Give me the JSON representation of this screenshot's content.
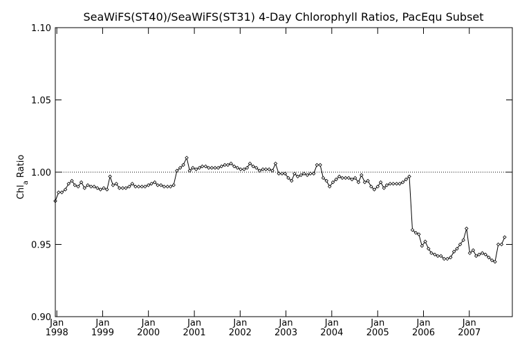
{
  "chart_data": {
    "type": "line",
    "title": "SeaWiFS(ST40)/SeaWiFS(ST31) 4-Day Chlorophyll Ratios, PacEqu Subset",
    "ylabel": "Chl_a Ratio",
    "ylabel_main": "Chl",
    "ylabel_sub": "a",
    "ylabel_rest": " Ratio",
    "xlabel": "",
    "ylim": [
      0.9,
      1.1
    ],
    "xlim": [
      "1997-12-20",
      "2007-12-10"
    ],
    "yticks": [
      "0.90",
      "0.95",
      "1.00",
      "1.05",
      "1.10"
    ],
    "xticks": [
      {
        "month": "Jan",
        "year": "1998",
        "date": "1998-01-01"
      },
      {
        "month": "Jan",
        "year": "1999",
        "date": "1999-01-01"
      },
      {
        "month": "Jan",
        "year": "2000",
        "date": "2000-01-01"
      },
      {
        "month": "Jan",
        "year": "2001",
        "date": "2001-01-01"
      },
      {
        "month": "Jan",
        "year": "2002",
        "date": "2002-01-01"
      },
      {
        "month": "Jan",
        "year": "2003",
        "date": "2003-01-01"
      },
      {
        "month": "Jan",
        "year": "2004",
        "date": "2004-01-01"
      },
      {
        "month": "Jan",
        "year": "2005",
        "date": "2005-01-01"
      },
      {
        "month": "Jan",
        "year": "2006",
        "date": "2006-01-01"
      },
      {
        "month": "Jan",
        "year": "2007",
        "date": "2007-01-01"
      }
    ],
    "reference_line": {
      "y": 1.0,
      "style": "dotted"
    },
    "series": [
      {
        "marker": "diamond",
        "points": [
          [
            "1997-12-20",
            0.98
          ],
          [
            "1998-01-15",
            0.986
          ],
          [
            "1998-02-10",
            0.986
          ],
          [
            "1998-03-10",
            0.988
          ],
          [
            "1998-04-05",
            0.992
          ],
          [
            "1998-05-01",
            0.994
          ],
          [
            "1998-05-25",
            0.991
          ],
          [
            "1998-06-20",
            0.99
          ],
          [
            "1998-07-15",
            0.993
          ],
          [
            "1998-08-10",
            0.989
          ],
          [
            "1998-09-05",
            0.991
          ],
          [
            "1998-10-01",
            0.99
          ],
          [
            "1998-10-25",
            0.99
          ],
          [
            "1998-11-20",
            0.989
          ],
          [
            "1998-12-15",
            0.988
          ],
          [
            "1999-01-10",
            0.989
          ],
          [
            "1999-02-05",
            0.988
          ],
          [
            "1999-03-01",
            0.997
          ],
          [
            "1999-03-25",
            0.991
          ],
          [
            "1999-04-20",
            0.992
          ],
          [
            "1999-05-15",
            0.989
          ],
          [
            "1999-06-10",
            0.989
          ],
          [
            "1999-07-05",
            0.989
          ],
          [
            "1999-08-01",
            0.99
          ],
          [
            "1999-08-25",
            0.992
          ],
          [
            "1999-09-20",
            0.99
          ],
          [
            "1999-10-15",
            0.99
          ],
          [
            "1999-11-10",
            0.99
          ],
          [
            "1999-12-05",
            0.99
          ],
          [
            "2000-01-01",
            0.991
          ],
          [
            "2000-01-25",
            0.992
          ],
          [
            "2000-02-20",
            0.993
          ],
          [
            "2000-03-15",
            0.991
          ],
          [
            "2000-04-10",
            0.991
          ],
          [
            "2000-05-05",
            0.99
          ],
          [
            "2000-06-01",
            0.99
          ],
          [
            "2000-06-25",
            0.99
          ],
          [
            "2000-07-20",
            0.991
          ],
          [
            "2000-08-15",
            1.001
          ],
          [
            "2000-09-10",
            1.003
          ],
          [
            "2000-10-05",
            1.005
          ],
          [
            "2000-11-01",
            1.01
          ],
          [
            "2000-11-25",
            1.001
          ],
          [
            "2000-12-20",
            1.003
          ],
          [
            "2001-01-15",
            1.002
          ],
          [
            "2001-02-10",
            1.003
          ],
          [
            "2001-03-05",
            1.004
          ],
          [
            "2001-04-01",
            1.004
          ],
          [
            "2001-04-25",
            1.003
          ],
          [
            "2001-05-20",
            1.003
          ],
          [
            "2001-06-15",
            1.003
          ],
          [
            "2001-07-10",
            1.003
          ],
          [
            "2001-08-05",
            1.004
          ],
          [
            "2001-09-01",
            1.005
          ],
          [
            "2001-09-25",
            1.005
          ],
          [
            "2001-10-20",
            1.006
          ],
          [
            "2001-11-15",
            1.004
          ],
          [
            "2001-12-10",
            1.003
          ],
          [
            "2002-01-05",
            1.002
          ],
          [
            "2002-02-01",
            1.002
          ],
          [
            "2002-02-25",
            1.003
          ],
          [
            "2002-03-20",
            1.006
          ],
          [
            "2002-04-15",
            1.004
          ],
          [
            "2002-05-10",
            1.003
          ],
          [
            "2002-06-05",
            1.001
          ],
          [
            "2002-07-01",
            1.002
          ],
          [
            "2002-07-25",
            1.002
          ],
          [
            "2002-08-20",
            1.002
          ],
          [
            "2002-09-15",
            1.001
          ],
          [
            "2002-10-10",
            1.006
          ],
          [
            "2002-11-05",
            0.999
          ],
          [
            "2002-12-01",
            0.999
          ],
          [
            "2002-12-25",
            0.999
          ],
          [
            "2003-01-20",
            0.996
          ],
          [
            "2003-02-15",
            0.994
          ],
          [
            "2003-03-10",
            0.999
          ],
          [
            "2003-04-05",
            0.997
          ],
          [
            "2003-05-01",
            0.998
          ],
          [
            "2003-05-25",
            0.999
          ],
          [
            "2003-06-20",
            0.998
          ],
          [
            "2003-07-15",
            0.999
          ],
          [
            "2003-08-10",
            0.999
          ],
          [
            "2003-09-05",
            1.005
          ],
          [
            "2003-10-01",
            1.005
          ],
          [
            "2003-10-25",
            0.996
          ],
          [
            "2003-11-20",
            0.994
          ],
          [
            "2003-12-15",
            0.99
          ],
          [
            "2004-01-10",
            0.993
          ],
          [
            "2004-02-05",
            0.995
          ],
          [
            "2004-03-01",
            0.997
          ],
          [
            "2004-03-25",
            0.996
          ],
          [
            "2004-04-20",
            0.996
          ],
          [
            "2004-05-15",
            0.996
          ],
          [
            "2004-06-10",
            0.995
          ],
          [
            "2004-07-05",
            0.996
          ],
          [
            "2004-08-01",
            0.993
          ],
          [
            "2004-08-25",
            0.998
          ],
          [
            "2004-09-20",
            0.993
          ],
          [
            "2004-10-15",
            0.994
          ],
          [
            "2004-11-10",
            0.99
          ],
          [
            "2004-12-05",
            0.988
          ],
          [
            "2005-01-01",
            0.99
          ],
          [
            "2005-01-25",
            0.993
          ],
          [
            "2005-02-20",
            0.989
          ],
          [
            "2005-03-15",
            0.991
          ],
          [
            "2005-04-10",
            0.992
          ],
          [
            "2005-05-05",
            0.992
          ],
          [
            "2005-06-01",
            0.992
          ],
          [
            "2005-06-25",
            0.992
          ],
          [
            "2005-07-20",
            0.993
          ],
          [
            "2005-08-15",
            0.995
          ],
          [
            "2005-09-10",
            0.997
          ],
          [
            "2005-10-05",
            0.96
          ],
          [
            "2005-11-01",
            0.958
          ],
          [
            "2005-11-25",
            0.957
          ],
          [
            "2005-12-20",
            0.949
          ],
          [
            "2006-01-15",
            0.952
          ],
          [
            "2006-02-10",
            0.947
          ],
          [
            "2006-03-05",
            0.944
          ],
          [
            "2006-04-01",
            0.943
          ],
          [
            "2006-04-25",
            0.942
          ],
          [
            "2006-05-20",
            0.942
          ],
          [
            "2006-06-15",
            0.94
          ],
          [
            "2006-07-10",
            0.94
          ],
          [
            "2006-08-05",
            0.941
          ],
          [
            "2006-09-01",
            0.945
          ],
          [
            "2006-09-25",
            0.947
          ],
          [
            "2006-10-20",
            0.95
          ],
          [
            "2006-11-15",
            0.953
          ],
          [
            "2006-12-10",
            0.961
          ],
          [
            "2007-01-05",
            0.944
          ],
          [
            "2007-02-01",
            0.946
          ],
          [
            "2007-02-25",
            0.942
          ],
          [
            "2007-03-20",
            0.943
          ],
          [
            "2007-04-15",
            0.944
          ],
          [
            "2007-05-10",
            0.943
          ],
          [
            "2007-06-05",
            0.941
          ],
          [
            "2007-07-01",
            0.939
          ],
          [
            "2007-07-25",
            0.938
          ],
          [
            "2007-08-20",
            0.95
          ],
          [
            "2007-09-15",
            0.95
          ],
          [
            "2007-10-10",
            0.955
          ]
        ]
      }
    ]
  }
}
